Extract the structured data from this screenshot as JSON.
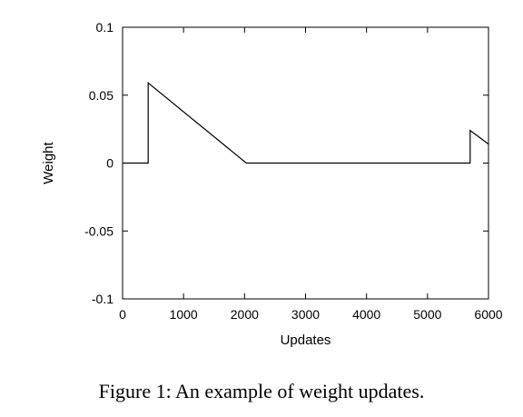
{
  "chart_data": {
    "type": "line",
    "xlabel": "Updates",
    "ylabel": "Weight",
    "xlim": [
      0,
      6000
    ],
    "ylim": [
      -0.1,
      0.1
    ],
    "x_ticks": [
      0,
      1000,
      2000,
      3000,
      4000,
      5000,
      6000
    ],
    "x_tick_labels": [
      "0",
      "1000",
      "2000",
      "3000",
      "4000",
      "5000",
      "6000"
    ],
    "y_ticks": [
      0.1,
      0.05,
      0,
      -0.05,
      -0.1
    ],
    "y_tick_labels": [
      "0.1",
      "0.05",
      "0",
      "-0.05",
      "-0.1"
    ],
    "grid": false,
    "legend": "none",
    "series": [
      {
        "x": [
          0,
          420,
          420,
          2030,
          5700,
          5700,
          6000
        ],
        "y": [
          0,
          0,
          0.059,
          0,
          0,
          0.024,
          0.014
        ]
      }
    ]
  },
  "caption": "Figure 1: An example of weight updates."
}
